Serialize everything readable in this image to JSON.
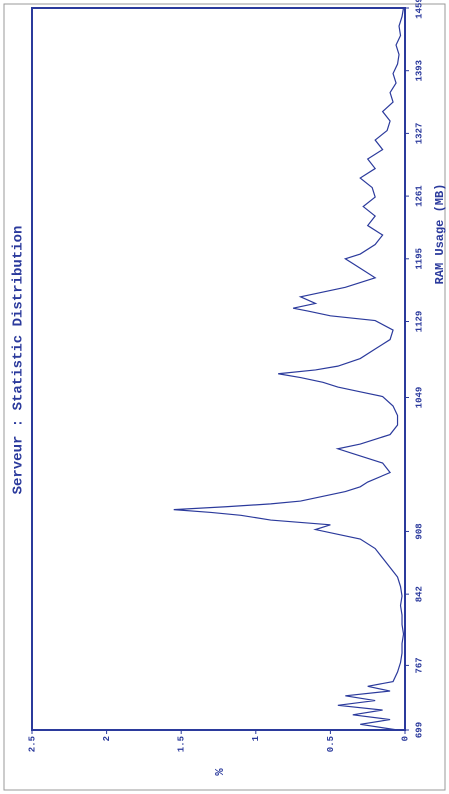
{
  "chart_data": {
    "type": "line",
    "title": "Serveur : Statistic Distribution",
    "x_label": "RAM Usage (MB)",
    "y_label": "%",
    "color": "#2b3a9c",
    "x": [
      699,
      705,
      710,
      715,
      720,
      725,
      730,
      735,
      740,
      745,
      750,
      760,
      770,
      780,
      790,
      800,
      810,
      820,
      830,
      840,
      850,
      860,
      870,
      880,
      890,
      900,
      905,
      910,
      915,
      920,
      925,
      928,
      931,
      934,
      937,
      940,
      945,
      950,
      955,
      960,
      970,
      980,
      985,
      990,
      995,
      1000,
      1005,
      1010,
      1020,
      1030,
      1040,
      1050,
      1055,
      1060,
      1065,
      1070,
      1074,
      1078,
      1082,
      1090,
      1100,
      1110,
      1120,
      1130,
      1135,
      1140,
      1143,
      1148,
      1155,
      1165,
      1175,
      1185,
      1190,
      1195,
      1200,
      1210,
      1220,
      1230,
      1240,
      1250,
      1260,
      1270,
      1280,
      1290,
      1300,
      1310,
      1320,
      1330,
      1340,
      1350,
      1360,
      1370,
      1380,
      1390,
      1400,
      1410,
      1420,
      1430,
      1440,
      1450,
      1459
    ],
    "values": [
      0.05,
      0.3,
      0.1,
      0.35,
      0.15,
      0.45,
      0.2,
      0.4,
      0.1,
      0.25,
      0.08,
      0.05,
      0.03,
      0.02,
      0.02,
      0.01,
      0.02,
      0.02,
      0.03,
      0.02,
      0.03,
      0.05,
      0.1,
      0.15,
      0.2,
      0.3,
      0.45,
      0.6,
      0.5,
      0.9,
      1.1,
      1.3,
      1.55,
      1.2,
      0.9,
      0.7,
      0.55,
      0.4,
      0.3,
      0.25,
      0.1,
      0.15,
      0.25,
      0.35,
      0.45,
      0.3,
      0.2,
      0.1,
      0.05,
      0.05,
      0.08,
      0.15,
      0.3,
      0.45,
      0.55,
      0.7,
      0.85,
      0.6,
      0.45,
      0.3,
      0.2,
      0.1,
      0.08,
      0.2,
      0.5,
      0.65,
      0.75,
      0.6,
      0.7,
      0.4,
      0.2,
      0.3,
      0.35,
      0.4,
      0.3,
      0.2,
      0.15,
      0.25,
      0.2,
      0.28,
      0.2,
      0.22,
      0.3,
      0.2,
      0.25,
      0.15,
      0.2,
      0.12,
      0.1,
      0.15,
      0.08,
      0.1,
      0.06,
      0.08,
      0.05,
      0.04,
      0.06,
      0.03,
      0.04,
      0.02,
      0.01
    ],
    "xlim": [
      699,
      1459
    ],
    "xticks": [
      699,
      767,
      842,
      908,
      1049,
      1129,
      1195,
      1261,
      1327,
      1393,
      1459
    ],
    "ylim": [
      0,
      2.5
    ],
    "yticks": [
      0,
      0.5,
      1,
      1.5,
      2,
      2.5
    ]
  }
}
